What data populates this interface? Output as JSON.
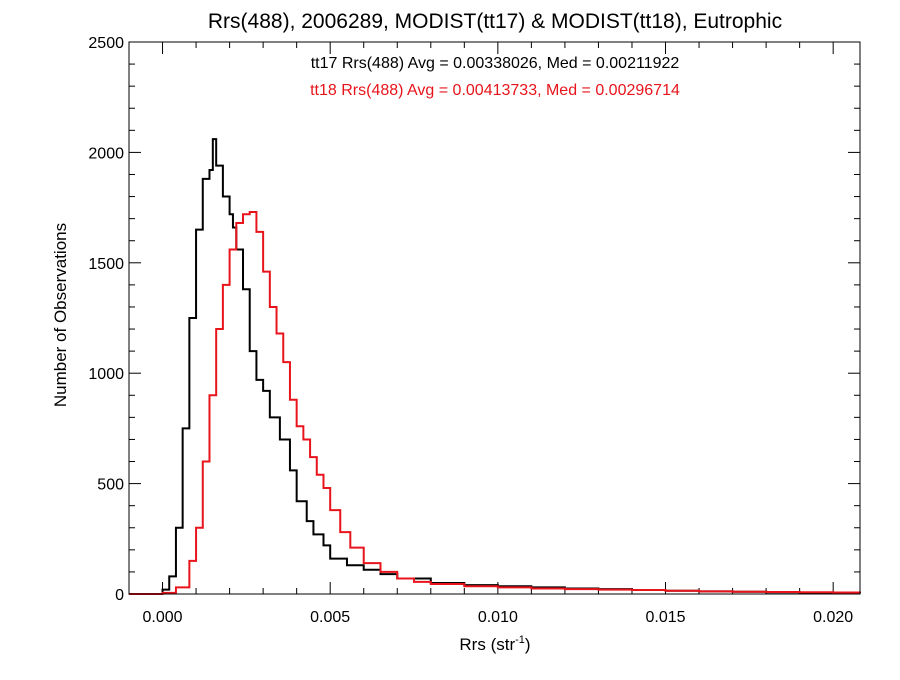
{
  "chart_data": {
    "type": "line",
    "title": "Rrs(488), 2006289, MODIST(tt17) & MODIST(tt18), Eutrophic",
    "xlabel_main": "Rrs (str",
    "xlabel_sup": "-1",
    "xlabel_close": ")",
    "ylabel": "Number of Observations",
    "xlim": [
      -0.001,
      0.0208
    ],
    "ylim": [
      0,
      2500
    ],
    "x_ticks": [
      0.0,
      0.005,
      0.01,
      0.015,
      0.02
    ],
    "x_tick_labels": [
      "0.000",
      "0.005",
      "0.010",
      "0.015",
      "0.020"
    ],
    "y_ticks": [
      0,
      500,
      1000,
      1500,
      2000,
      2500
    ],
    "y_tick_labels": [
      "0",
      "500",
      "1000",
      "1500",
      "2000",
      "2500"
    ],
    "grid": false,
    "step": true,
    "annotations": [
      {
        "text": "tt17 Rrs(488) Avg = 0.00338026, Med = 0.00211922",
        "color": "#000000"
      },
      {
        "text": "tt18 Rrs(488) Avg = 0.00413733, Med = 0.00296714",
        "color": "#e8141b"
      }
    ],
    "series": [
      {
        "color": "#000000",
        "x": [
          -0.001,
          0.0,
          0.0002,
          0.0004,
          0.0006,
          0.0008,
          0.001,
          0.0012,
          0.0014,
          0.0015,
          0.0016,
          0.0018,
          0.002,
          0.0021,
          0.0022,
          0.0024,
          0.0026,
          0.0028,
          0.003,
          0.0032,
          0.0035,
          0.0038,
          0.004,
          0.0043,
          0.0045,
          0.0048,
          0.005,
          0.0055,
          0.006,
          0.0065,
          0.007,
          0.008,
          0.009,
          0.01,
          0.011,
          0.012,
          0.013,
          0.014,
          0.015,
          0.016,
          0.017,
          0.018,
          0.019,
          0.02,
          0.0208
        ],
        "y": [
          0,
          20,
          80,
          300,
          750,
          1250,
          1650,
          1880,
          1920,
          2060,
          1940,
          1800,
          1720,
          1660,
          1560,
          1380,
          1100,
          970,
          920,
          800,
          700,
          560,
          420,
          330,
          270,
          220,
          160,
          130,
          110,
          90,
          70,
          50,
          40,
          35,
          30,
          25,
          22,
          18,
          15,
          12,
          10,
          8,
          6,
          5,
          4
        ]
      },
      {
        "color": "#e8141b",
        "x": [
          -0.001,
          0.0,
          0.0004,
          0.0008,
          0.001,
          0.0012,
          0.0014,
          0.0016,
          0.0018,
          0.002,
          0.0022,
          0.0024,
          0.0026,
          0.0028,
          0.003,
          0.0032,
          0.0034,
          0.0036,
          0.0038,
          0.004,
          0.0042,
          0.0044,
          0.0046,
          0.0048,
          0.005,
          0.0053,
          0.0056,
          0.006,
          0.0065,
          0.007,
          0.0075,
          0.008,
          0.009,
          0.01,
          0.011,
          0.012,
          0.013,
          0.014,
          0.015,
          0.016,
          0.017,
          0.018,
          0.019,
          0.02,
          0.0208
        ],
        "y": [
          0,
          5,
          30,
          150,
          300,
          600,
          900,
          1200,
          1400,
          1560,
          1680,
          1720,
          1730,
          1640,
          1460,
          1300,
          1180,
          1050,
          880,
          760,
          700,
          620,
          540,
          480,
          380,
          280,
          210,
          140,
          100,
          70,
          55,
          45,
          35,
          30,
          25,
          22,
          20,
          18,
          15,
          12,
          10,
          9,
          8,
          7,
          6
        ]
      }
    ]
  }
}
